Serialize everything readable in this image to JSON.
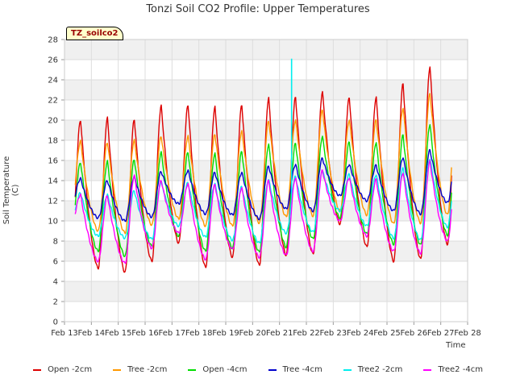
{
  "title": "Tonzi Soil CO2 Profile: Upper Temperatures",
  "badge": "TZ_soilco2",
  "chart_data": {
    "type": "line",
    "title": "Tonzi Soil CO2 Profile: Upper Temperatures",
    "xlabel": "Time",
    "ylabel": "Soil Temperature (C)",
    "ylim": [
      0,
      28
    ],
    "yticks": [
      "0",
      "2",
      "4",
      "6",
      "8",
      "10",
      "12",
      "14",
      "16",
      "18",
      "20",
      "22",
      "24",
      "26",
      "28"
    ],
    "xlim": [
      13,
      28
    ],
    "xticks": [
      "Feb 13",
      "Feb 14",
      "Feb 15",
      "Feb 16",
      "Feb 17",
      "Feb 18",
      "Feb 19",
      "Feb 20",
      "Feb 21",
      "Feb 22",
      "Feb 23",
      "Feb 24",
      "Feb 25",
      "Feb 26",
      "Feb 27",
      "Feb 28"
    ],
    "grid": true,
    "legend_position": "bottom",
    "series": [
      {
        "name": "Open -2cm",
        "color": "#dd0000",
        "peaks": [
          20.0,
          20.2,
          20.1,
          21.4,
          21.5,
          21.3,
          21.5,
          22.2,
          22.3,
          22.8,
          22.2,
          22.3,
          23.6,
          25.3
        ],
        "troughs": [
          7.3,
          5.3,
          4.9,
          6.0,
          7.8,
          5.4,
          6.4,
          5.6,
          6.6,
          6.7,
          9.7,
          7.4,
          6.0,
          6.2,
          7.7,
          10.0
        ]
      },
      {
        "name": "Tree -2cm",
        "color": "#ff9900",
        "peaks": [
          17.9,
          17.8,
          18.0,
          18.4,
          18.4,
          18.6,
          18.9,
          19.9,
          20.0,
          21.0,
          20.0,
          20.0,
          21.2,
          22.6
        ],
        "troughs": [
          11.0,
          9.0,
          8.8,
          9.6,
          10.2,
          9.5,
          9.5,
          9.8,
          10.4,
          10.5,
          11.0,
          10.6,
          9.7,
          9.8,
          10.6,
          12.0
        ]
      },
      {
        "name": "Open -4cm",
        "color": "#00dd00",
        "peaks": [
          15.8,
          15.9,
          16.1,
          16.8,
          16.8,
          16.7,
          16.9,
          17.6,
          17.7,
          18.4,
          17.8,
          17.8,
          18.5,
          19.6
        ],
        "troughs": [
          8.7,
          7.0,
          6.5,
          7.5,
          8.5,
          7.0,
          7.3,
          6.9,
          7.4,
          8.2,
          10.3,
          8.7,
          7.7,
          7.6,
          8.6,
          11.5
        ]
      },
      {
        "name": "Tree -4cm",
        "color": "#0000cc",
        "peaks": [
          14.2,
          14.0,
          14.4,
          14.9,
          15.0,
          14.8,
          14.8,
          15.4,
          15.6,
          16.2,
          15.6,
          15.5,
          16.3,
          17.0
        ],
        "troughs": [
          11.5,
          10.3,
          10.0,
          10.4,
          11.7,
          10.7,
          10.6,
          10.2,
          11.2,
          11.0,
          12.5,
          12.0,
          11.0,
          10.7,
          11.8,
          13.5
        ]
      },
      {
        "name": "Tree2 -2cm",
        "color": "#00eeee",
        "peaks": [
          12.8,
          12.6,
          13.0,
          13.9,
          13.8,
          13.7,
          13.4,
          14.1,
          14.4,
          15.0,
          14.6,
          14.6,
          15.2,
          16.2
        ],
        "troughs": [
          9.8,
          8.5,
          8.3,
          8.2,
          9.5,
          8.4,
          8.1,
          7.8,
          8.8,
          8.9,
          11.0,
          9.5,
          8.3,
          8.1,
          9.4,
          12.0
        ],
        "spike": {
          "x": 21.45,
          "y": 26.1
        }
      },
      {
        "name": "Tree2 -4cm",
        "color": "#ff00ff",
        "peaks": [
          12.6,
          12.5,
          14.5,
          14.0,
          13.7,
          13.6,
          13.3,
          14.0,
          14.3,
          15.0,
          14.3,
          14.1,
          14.8,
          15.9
        ],
        "troughs": [
          9.6,
          6.0,
          5.8,
          7.3,
          8.8,
          6.2,
          7.2,
          6.4,
          6.6,
          7.0,
          10.0,
          8.5,
          7.0,
          6.8,
          8.0,
          12.2
        ]
      }
    ]
  }
}
